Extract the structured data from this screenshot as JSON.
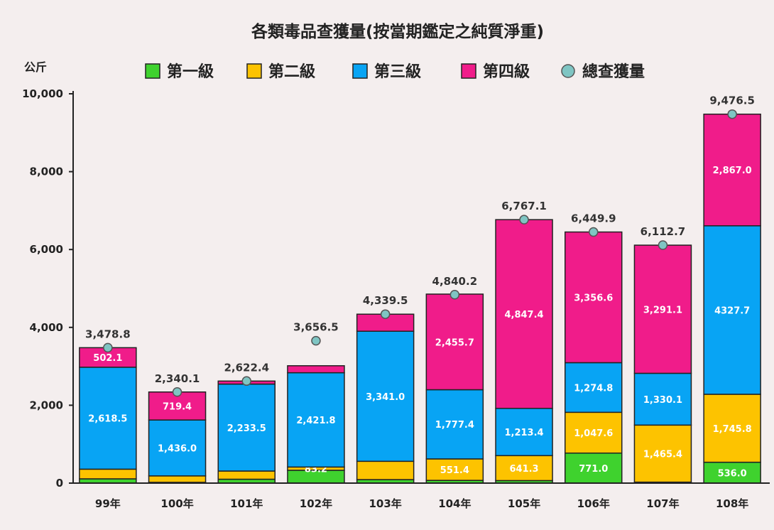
{
  "chart_data": {
    "type": "bar",
    "stacked": true,
    "title": "各類毒品查獲量(按當期鑑定之純質淨重)",
    "ylabel": "公斤",
    "ylim": [
      0,
      10000
    ],
    "yticks": [
      0,
      2000,
      4000,
      6000,
      8000,
      10000
    ],
    "ytick_labels": [
      "0",
      "2,000",
      "4,000",
      "6,000",
      "8,000",
      "10,000"
    ],
    "legend_position": "top",
    "categories": [
      "99年",
      "100年",
      "101年",
      "102年",
      "103年",
      "104年",
      "105年",
      "106年",
      "107年",
      "108年"
    ],
    "series": [
      {
        "name": "第一級",
        "color": "#3fd22e",
        "values": [
          110,
          20,
          100,
          330,
          90,
          70,
          65,
          771.0,
          25,
          536.0
        ],
        "labels": [
          "",
          "",
          "",
          "",
          "",
          "",
          "",
          "771.0",
          "",
          "536.0"
        ]
      },
      {
        "name": "第二級",
        "color": "#fdc300",
        "values": [
          248,
          165,
          210,
          83.2,
          470,
          551.4,
          641.3,
          1047.6,
          1465.4,
          1745.8
        ],
        "labels": [
          "",
          "",
          "",
          "83.2",
          "",
          "551.4",
          "641.3",
          "1,047.6",
          "1,465.4",
          "1,745.8"
        ]
      },
      {
        "name": "第三級",
        "color": "#08a4f4",
        "values": [
          2618.5,
          1436.0,
          2233.5,
          2421.8,
          3341.0,
          1777.4,
          1213.4,
          1274.8,
          1330.1,
          4327.7
        ],
        "labels": [
          "2,618.5",
          "1,436.0",
          "2,233.5",
          "2,421.8",
          "3,341.0",
          "1,777.4",
          "1,213.4",
          "1,274.8",
          "1,330.1",
          "4327.7"
        ]
      },
      {
        "name": "第四級",
        "color": "#f01c8a",
        "values": [
          502.1,
          719.4,
          78,
          180,
          438,
          2455.7,
          4847.4,
          3356.6,
          3291.1,
          2867.0
        ],
        "labels": [
          "502.1",
          "719.4",
          "",
          "",
          "",
          "2,455.7",
          "4,847.4",
          "3,356.6",
          "3,291.1",
          "2,867.0"
        ]
      }
    ],
    "totals": {
      "name": "總查獲量",
      "color": "#7fc5c3",
      "values": [
        3478.8,
        2340.1,
        2622.4,
        3656.5,
        4339.5,
        4840.2,
        6767.1,
        6449.9,
        6112.7,
        9476.5
      ],
      "labels": [
        "3,478.8",
        "2,340.1",
        "2,622.4",
        "3,656.5",
        "4,339.5",
        "4,840.2",
        "6,767.1",
        "6,449.9",
        "6,112.7",
        "9,476.5"
      ]
    }
  }
}
